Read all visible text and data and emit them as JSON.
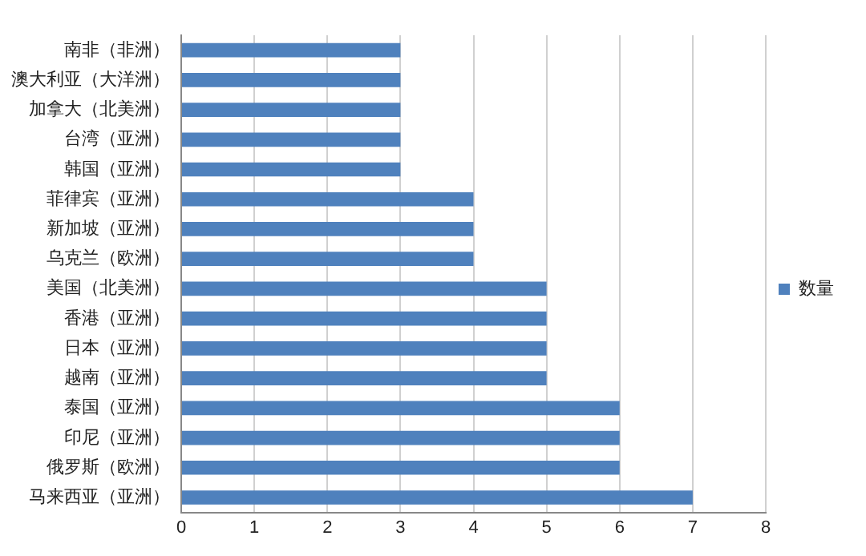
{
  "chart_data": {
    "type": "bar",
    "orientation": "horizontal",
    "categories": [
      "南非（非洲）",
      "澳大利亚（大洋洲）",
      "加拿大（北美洲）",
      "台湾（亚洲）",
      "韩国（亚洲）",
      "菲律宾（亚洲）",
      "新加坡（亚洲）",
      "乌克兰（欧洲）",
      "美国（北美洲）",
      "香港（亚洲）",
      "日本（亚洲）",
      "越南（亚洲）",
      "泰国（亚洲）",
      "印尼（亚洲）",
      "俄罗斯（欧洲）",
      "马来西亚（亚洲）"
    ],
    "series": [
      {
        "name": "数量",
        "color": "#4f81bd",
        "values": [
          3,
          3,
          3,
          3,
          3,
          4,
          4,
          4,
          5,
          5,
          5,
          5,
          6,
          6,
          6,
          7
        ]
      }
    ],
    "xlim": [
      0,
      8
    ],
    "xticks": [
      0,
      1,
      2,
      3,
      4,
      5,
      6,
      7,
      8
    ],
    "grid": "x",
    "legend": "right"
  }
}
